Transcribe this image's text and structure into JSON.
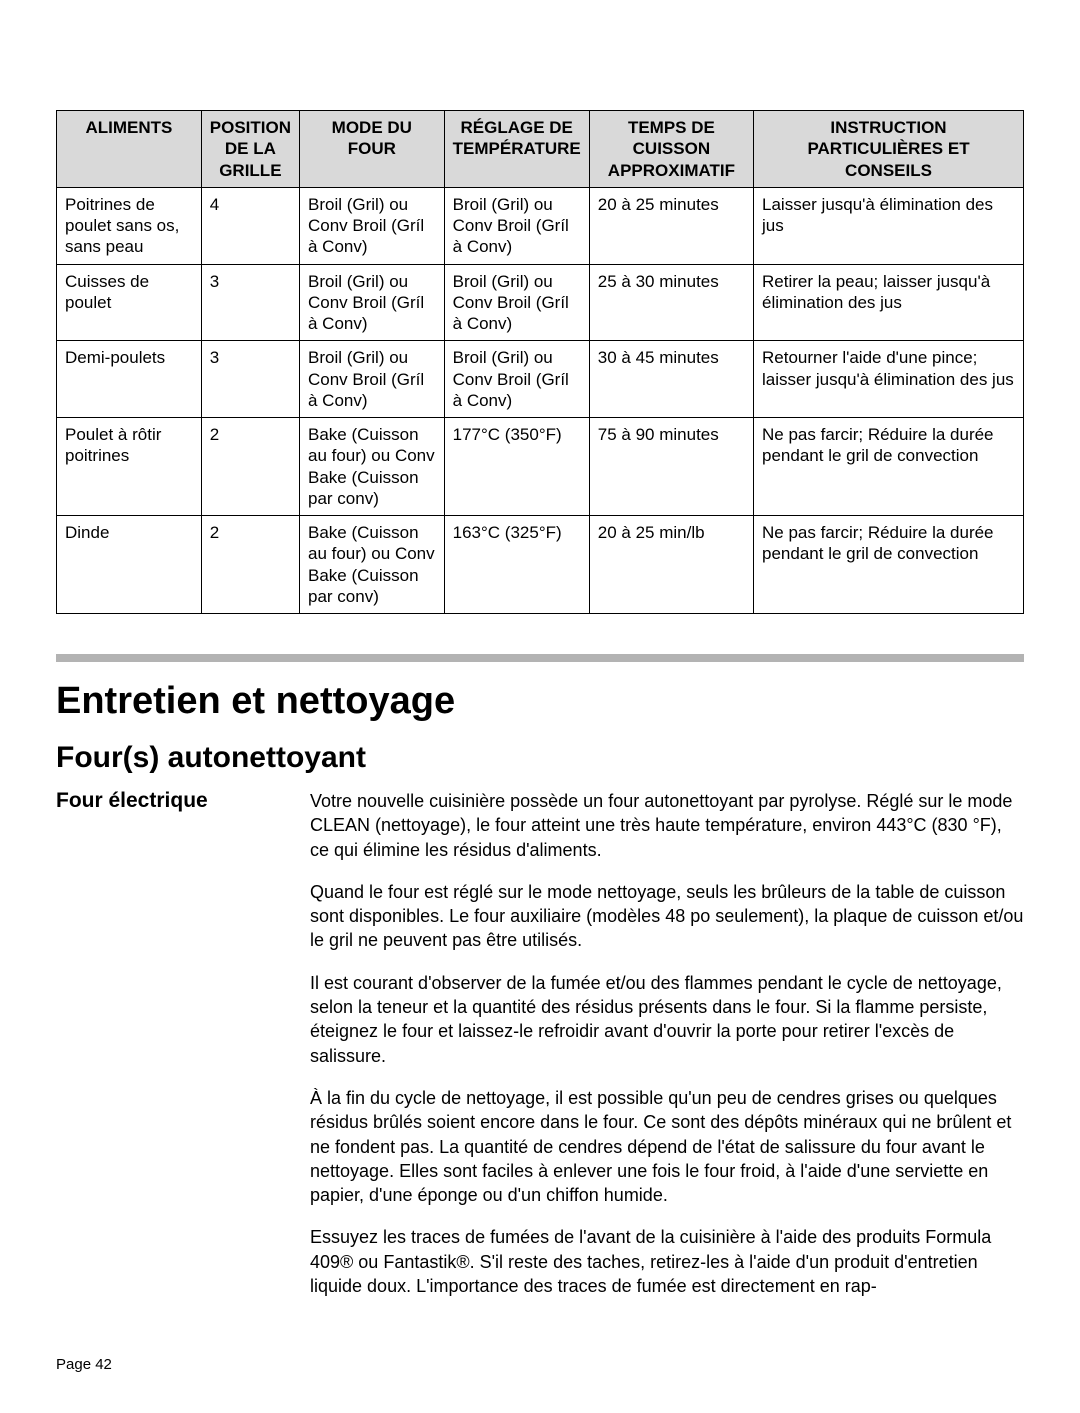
{
  "table": {
    "headers": [
      "ALIMENTS",
      "POSITION DE LA GRILLE",
      "MODE DU FOUR",
      "RÉGLAGE DE TEMPÉRATURE",
      "TEMPS DE CUISSON APPROXIMATIF",
      "INSTRUCTION PARTICULIÈRES ET CONSEILS"
    ],
    "rows": [
      [
        "Poitrines de poulet sans os, sans peau",
        "4",
        "Broil (Gril) ou Conv Broil (Gríl à Conv)",
        "Broil (Gril) ou Conv Broil (Gríl à Conv)",
        "20 à 25 minutes",
        "Laisser jusqu'à élimination des jus"
      ],
      [
        "Cuisses de poulet",
        "3",
        "Broil (Gril) ou Conv Broil (Gríl à Conv)",
        "Broil (Gril) ou Conv Broil (Gríl à Conv)",
        "25 à 30 minutes",
        "Retirer la peau; laisser jusqu'à élimination des jus"
      ],
      [
        "Demi-poulets",
        "3",
        "Broil (Gril) ou Conv Broil (Gríl à Conv)",
        "Broil (Gril) ou Conv Broil (Gríl à Conv)",
        "30 à 45 minutes",
        "Retourner l'aide d'une pince; laisser jusqu'à élimination des jus"
      ],
      [
        "Poulet à rôtir poitrines",
        "2",
        "Bake (Cuisson au four) ou Conv Bake (Cuisson par conv)",
        "177°C (350°F)",
        "75 à 90 minutes",
        "Ne pas farcir; Réduire la durée pendant le gril de convection"
      ],
      [
        "Dinde",
        "2",
        "Bake (Cuisson au four) ou Conv Bake (Cuisson par conv)",
        "163°C (325°F)",
        "20 à 25 min/lb",
        "Ne pas farcir; Réduire la durée pendant le gril de convection"
      ]
    ]
  },
  "section": {
    "title": "Entretien et nettoyage",
    "subtitle": "Four(s) autonettoyant",
    "side_heading": "Four électrique",
    "paragraphs": [
      "Votre nouvelle cuisinière possède un four autonettoyant par pyrolyse. Réglé sur le mode CLEAN (nettoyage), le four atteint une très haute température, environ 443°C (830 °F), ce qui élimine les résidus d'aliments.",
      "Quand le four est réglé sur le mode nettoyage, seuls les brûleurs de la table de cuisson sont disponibles. Le four auxiliaire (modèles 48 po seulement), la plaque de cuisson et/ou le gril ne peuvent pas être utilisés.",
      "Il est courant d'observer de la fumée et/ou des flammes pendant le cycle de nettoyage, selon la teneur et la quantité des résidus présents dans le four. Si la flamme persiste, éteignez le four et laissez-le refroidir avant d'ouvrir la porte pour retirer l'excès de salissure.",
      "À la fin du cycle de nettoyage, il est possible qu'un peu de cendres grises ou quelques résidus brûlés soient encore dans le four. Ce sont des dépôts minéraux qui ne brûlent et ne fondent pas. La quantité de cendres dépend de l'état de salissure du four avant le nettoyage. Elles sont faciles à enlever une fois le four froid, à l'aide d'une serviette en papier, d'une éponge ou d'un chiffon humide.",
      "Essuyez les traces de fumées de l'avant de la cuisinière à l'aide des produits Formula 409® ou Fantastik®. S'il reste des taches, retirez-les à l'aide d'un produit d'entretien liquide doux. L'importance des traces de fumée est directement en rap-"
    ]
  },
  "page_number": "Page 42"
}
